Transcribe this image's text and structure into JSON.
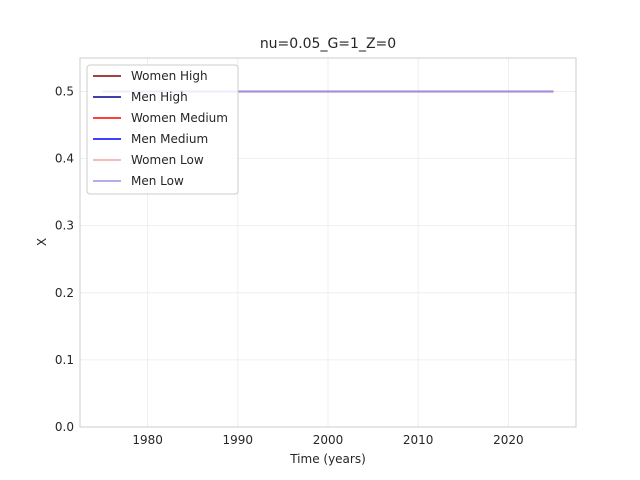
{
  "chart_data": {
    "type": "line",
    "title": "nu=0.05_G=1_Z=0",
    "xlabel": "Time (years)",
    "ylabel": "X",
    "xlim": [
      1972.5,
      2027.5
    ],
    "ylim": [
      0.0,
      0.55
    ],
    "xticks": [
      1980,
      1990,
      2000,
      2010,
      2020
    ],
    "xtick_labels": [
      "1980",
      "1990",
      "2000",
      "2010",
      "2020"
    ],
    "yticks": [
      0.0,
      0.1,
      0.2,
      0.3,
      0.4,
      0.5
    ],
    "ytick_labels": [
      "0.0",
      "0.1",
      "0.2",
      "0.3",
      "0.4",
      "0.5"
    ],
    "grid": true,
    "legend_position": "top-left",
    "series": [
      {
        "name": "Women High",
        "color": "#8b0000",
        "x": [
          1975,
          2025
        ],
        "values": [
          0.5,
          0.5
        ]
      },
      {
        "name": "Men High",
        "color": "#00008b",
        "x": [
          1975,
          2025
        ],
        "values": [
          0.5,
          0.5
        ]
      },
      {
        "name": "Women Medium",
        "color": "#ff0000",
        "x": [
          1975,
          2025
        ],
        "values": [
          0.5,
          0.5
        ]
      },
      {
        "name": "Men Medium",
        "color": "#0000ff",
        "x": [
          1975,
          2025
        ],
        "values": [
          0.5,
          0.5
        ]
      },
      {
        "name": "Women Low",
        "color": "#f4a3a8",
        "x": [
          1975,
          2025
        ],
        "values": [
          0.5,
          0.5
        ]
      },
      {
        "name": "Men Low",
        "color": "#9d8fe6",
        "x": [
          1975,
          2025
        ],
        "values": [
          0.5,
          0.5
        ]
      }
    ]
  }
}
